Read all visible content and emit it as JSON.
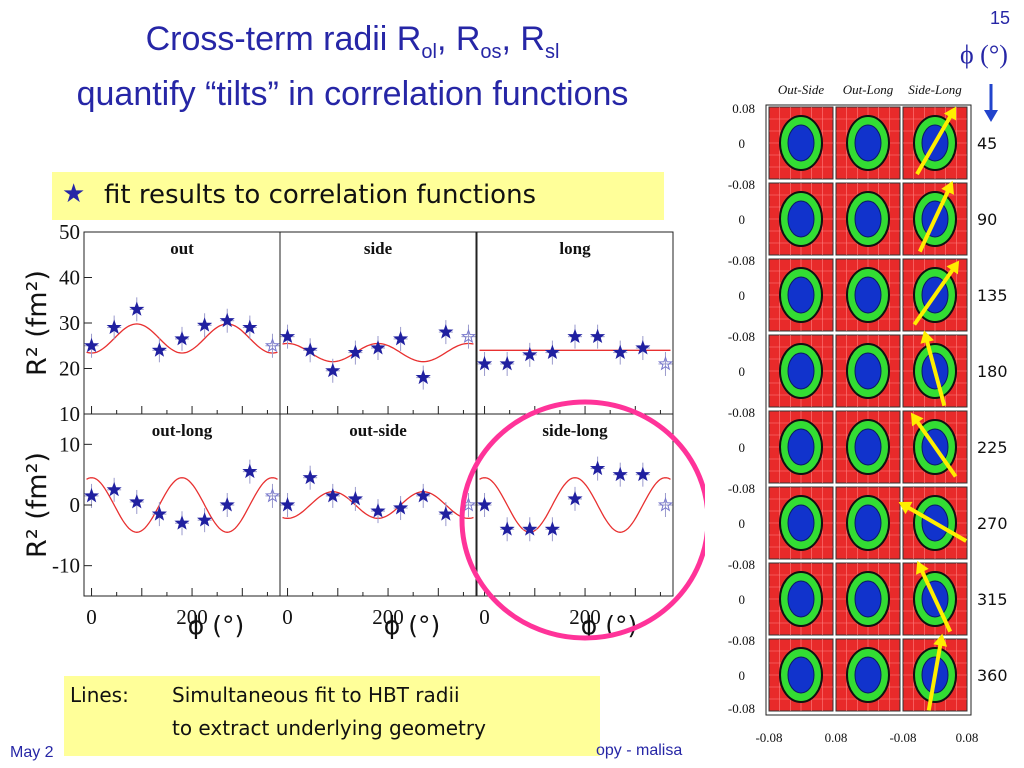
{
  "slide": {
    "title_part1": "Cross-term radii R",
    "sub_ol": "ol",
    "sep1": ", R",
    "sub_os": "os",
    "sep2": ", R",
    "sub_sl": "sl",
    "title_line2": "quantify “tilts” in correlation functions",
    "page_number": "15",
    "phi_label": "ϕ (°)",
    "fit_bullet": "★",
    "fit_text": "fit results to correlation functions",
    "lines_label": "Lines:",
    "lines_text1": "Simultaneous fit to HBT radii",
    "lines_text2": "to extract underlying geometry",
    "footer_left": "May 2",
    "footer_right": "opy - malisa"
  },
  "colors": {
    "title": "#2626a6",
    "highlight_box": "#ffff99",
    "circle": "#ff3399",
    "fit_line": "#e83030",
    "star_marker": "#2020a0",
    "panel_red": "#e82a2a",
    "panel_green": "#33dd33",
    "panel_blue": "#1133cc",
    "tilt_arrow": "#ffee00",
    "phi_arrow": "#2244cc"
  },
  "chart_data": [
    {
      "type": "scatter",
      "panel": "out",
      "title": "out",
      "ylabel": "R² (fm²)",
      "xlabel": "ϕ (°)",
      "ylim": [
        10,
        50
      ],
      "yticks": [
        10,
        20,
        30,
        40,
        50
      ],
      "xlim": [
        -15,
        375
      ],
      "xticks": [
        0,
        200
      ],
      "x": [
        0,
        45,
        90,
        135,
        180,
        225,
        270,
        315,
        360
      ],
      "y": [
        25,
        29,
        33,
        24,
        26.5,
        29.5,
        30.5,
        29,
        25
      ],
      "fit": {
        "mean": 26.6,
        "amp": 3.2,
        "phase_deg": 90
      }
    },
    {
      "type": "scatter",
      "panel": "side",
      "title": "side",
      "ylim": [
        10,
        50
      ],
      "xlim": [
        -15,
        375
      ],
      "xticks": [
        0,
        200
      ],
      "x": [
        0,
        45,
        90,
        135,
        180,
        225,
        270,
        315,
        360
      ],
      "y": [
        27,
        24,
        19.5,
        23.5,
        24.5,
        26.5,
        18,
        28,
        27
      ],
      "fit": {
        "mean": 23.5,
        "amp": 2.0,
        "phase_deg": 0
      }
    },
    {
      "type": "scatter",
      "panel": "long",
      "title": "long",
      "ylim": [
        10,
        50
      ],
      "xlim": [
        -15,
        375
      ],
      "xticks": [
        0,
        200
      ],
      "x": [
        0,
        45,
        90,
        135,
        180,
        225,
        270,
        315,
        360
      ],
      "y": [
        21,
        21,
        23,
        23.5,
        27,
        27,
        23.5,
        24.5,
        21
      ],
      "fit": {
        "mean": 24,
        "amp": 0,
        "phase_deg": 0
      }
    },
    {
      "type": "scatter",
      "panel": "out-long",
      "title": "out-long",
      "ylabel": "R² (fm²)",
      "ylim": [
        -15,
        15
      ],
      "yticks": [
        -10,
        0,
        10
      ],
      "xlim": [
        -15,
        375
      ],
      "xticks": [
        0,
        200
      ],
      "x": [
        0,
        45,
        90,
        135,
        180,
        225,
        270,
        315,
        360
      ],
      "y": [
        1.5,
        2.5,
        0.5,
        -1.5,
        -3,
        -2.5,
        0,
        5.5,
        1.5
      ],
      "fit": {
        "mean": 0,
        "amp": 4.5,
        "phase_deg": 0
      }
    },
    {
      "type": "scatter",
      "panel": "out-side",
      "title": "out-side",
      "ylim": [
        -15,
        15
      ],
      "xlim": [
        -15,
        375
      ],
      "xticks": [
        0,
        200
      ],
      "x": [
        0,
        45,
        90,
        135,
        180,
        225,
        270,
        315,
        360
      ],
      "y": [
        0,
        4.5,
        1.5,
        1,
        -1,
        -0.5,
        1.5,
        -1.5,
        0
      ],
      "fit": {
        "mean": 0,
        "amp": 2.2,
        "phase_deg": 90
      }
    },
    {
      "type": "scatter",
      "panel": "side-long",
      "title": "side-long",
      "ylim": [
        -15,
        15
      ],
      "xlim": [
        -15,
        375
      ],
      "xticks": [
        0,
        200
      ],
      "x": [
        0,
        45,
        90,
        135,
        180,
        225,
        270,
        315,
        360
      ],
      "y": [
        0,
        -4,
        -4,
        -4,
        1,
        6,
        5,
        5,
        0
      ],
      "fit": {
        "mean": 0,
        "amp": -4.5,
        "phase_deg": 90
      }
    }
  ],
  "grid_panel": {
    "col_labels": [
      "Out-Side",
      "Out-Long",
      "Side-Long"
    ],
    "rows": [
      {
        "phi": "45",
        "tick_top": "0.08",
        "tick_mid": "0"
      },
      {
        "phi": "90",
        "tick_top": "-0.08",
        "tick_mid": "0"
      },
      {
        "phi": "135",
        "tick_top": "-0.08",
        "tick_mid": "0"
      },
      {
        "phi": "180",
        "tick_top": "-0.08",
        "tick_mid": "0"
      },
      {
        "phi": "225",
        "tick_top": "-0.08",
        "tick_mid": "0"
      },
      {
        "phi": "270",
        "tick_top": "-0.08",
        "tick_mid": "0"
      },
      {
        "phi": "315",
        "tick_top": "-0.08",
        "tick_mid": "0"
      },
      {
        "phi": "360",
        "tick_top": "-0.08",
        "tick_mid": "0"
      }
    ],
    "tick_bottom": "-0.08",
    "x_ticks": [
      "-0.08",
      "0.08",
      "-0.08",
      "0.08"
    ],
    "tilt_deg": [
      30,
      25,
      35,
      -15,
      -35,
      -60,
      -25,
      10
    ]
  }
}
